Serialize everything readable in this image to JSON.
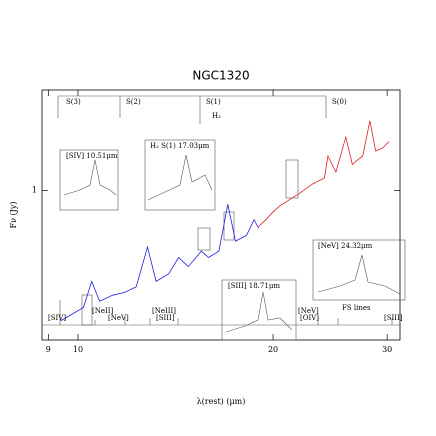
{
  "chart_data": {
    "type": "line",
    "title": "NGC1320",
    "x_label": "λ(rest)  (μm)",
    "y_label": "Fν (Jy)",
    "xscale": "log",
    "yscale": "log",
    "xlim": [
      8.8,
      31.4
    ],
    "ylim": [
      0.32,
      2.15
    ],
    "xticks": [
      9,
      10,
      20,
      30
    ],
    "yticks": [
      1
    ],
    "series": [
      {
        "color": "#2020e0",
        "x": [
          9.4,
          9.8,
          10.2,
          10.5,
          10.8,
          11.3,
          11.8,
          12.3,
          12.8,
          13.2,
          13.8,
          14.3,
          14.8,
          15.5,
          15.9,
          16.5,
          17.03,
          17.5,
          18.2,
          18.7,
          19.0
        ],
        "values": [
          0.37,
          0.39,
          0.41,
          0.5,
          0.43,
          0.45,
          0.46,
          0.48,
          0.65,
          0.5,
          0.53,
          0.6,
          0.56,
          0.63,
          0.6,
          0.63,
          0.9,
          0.68,
          0.71,
          0.8,
          0.75
        ]
      },
      {
        "color": "#e02020",
        "x": [
          19.0,
          19.5,
          20.0,
          20.5,
          21.0,
          22.0,
          23.0,
          24.0,
          24.3,
          25.0,
          25.9,
          26.5,
          27.0,
          27.5,
          28.22,
          28.8,
          29.5,
          30.2
        ],
        "values": [
          0.76,
          0.8,
          0.85,
          0.89,
          0.92,
          0.98,
          1.05,
          1.1,
          1.3,
          1.15,
          1.5,
          1.22,
          1.26,
          1.3,
          1.7,
          1.35,
          1.38,
          1.45
        ]
      }
    ],
    "h2_lines": [
      "S(3)",
      "S(2)",
      "S(1)",
      "S(0)",
      "H₂"
    ],
    "fs_lines": [
      "[SIV]",
      "[NeII]",
      "[NeV]",
      "[NeIII]",
      "[SIII]",
      "[NeV]",
      "[OIV]",
      "[SIII]",
      "FS lines"
    ],
    "insets": [
      "[SIV] 10.51μm",
      "H₂ S(1) 17.03μm",
      "[NeV] 24.32μm",
      "[SIII] 18.71μm"
    ]
  }
}
